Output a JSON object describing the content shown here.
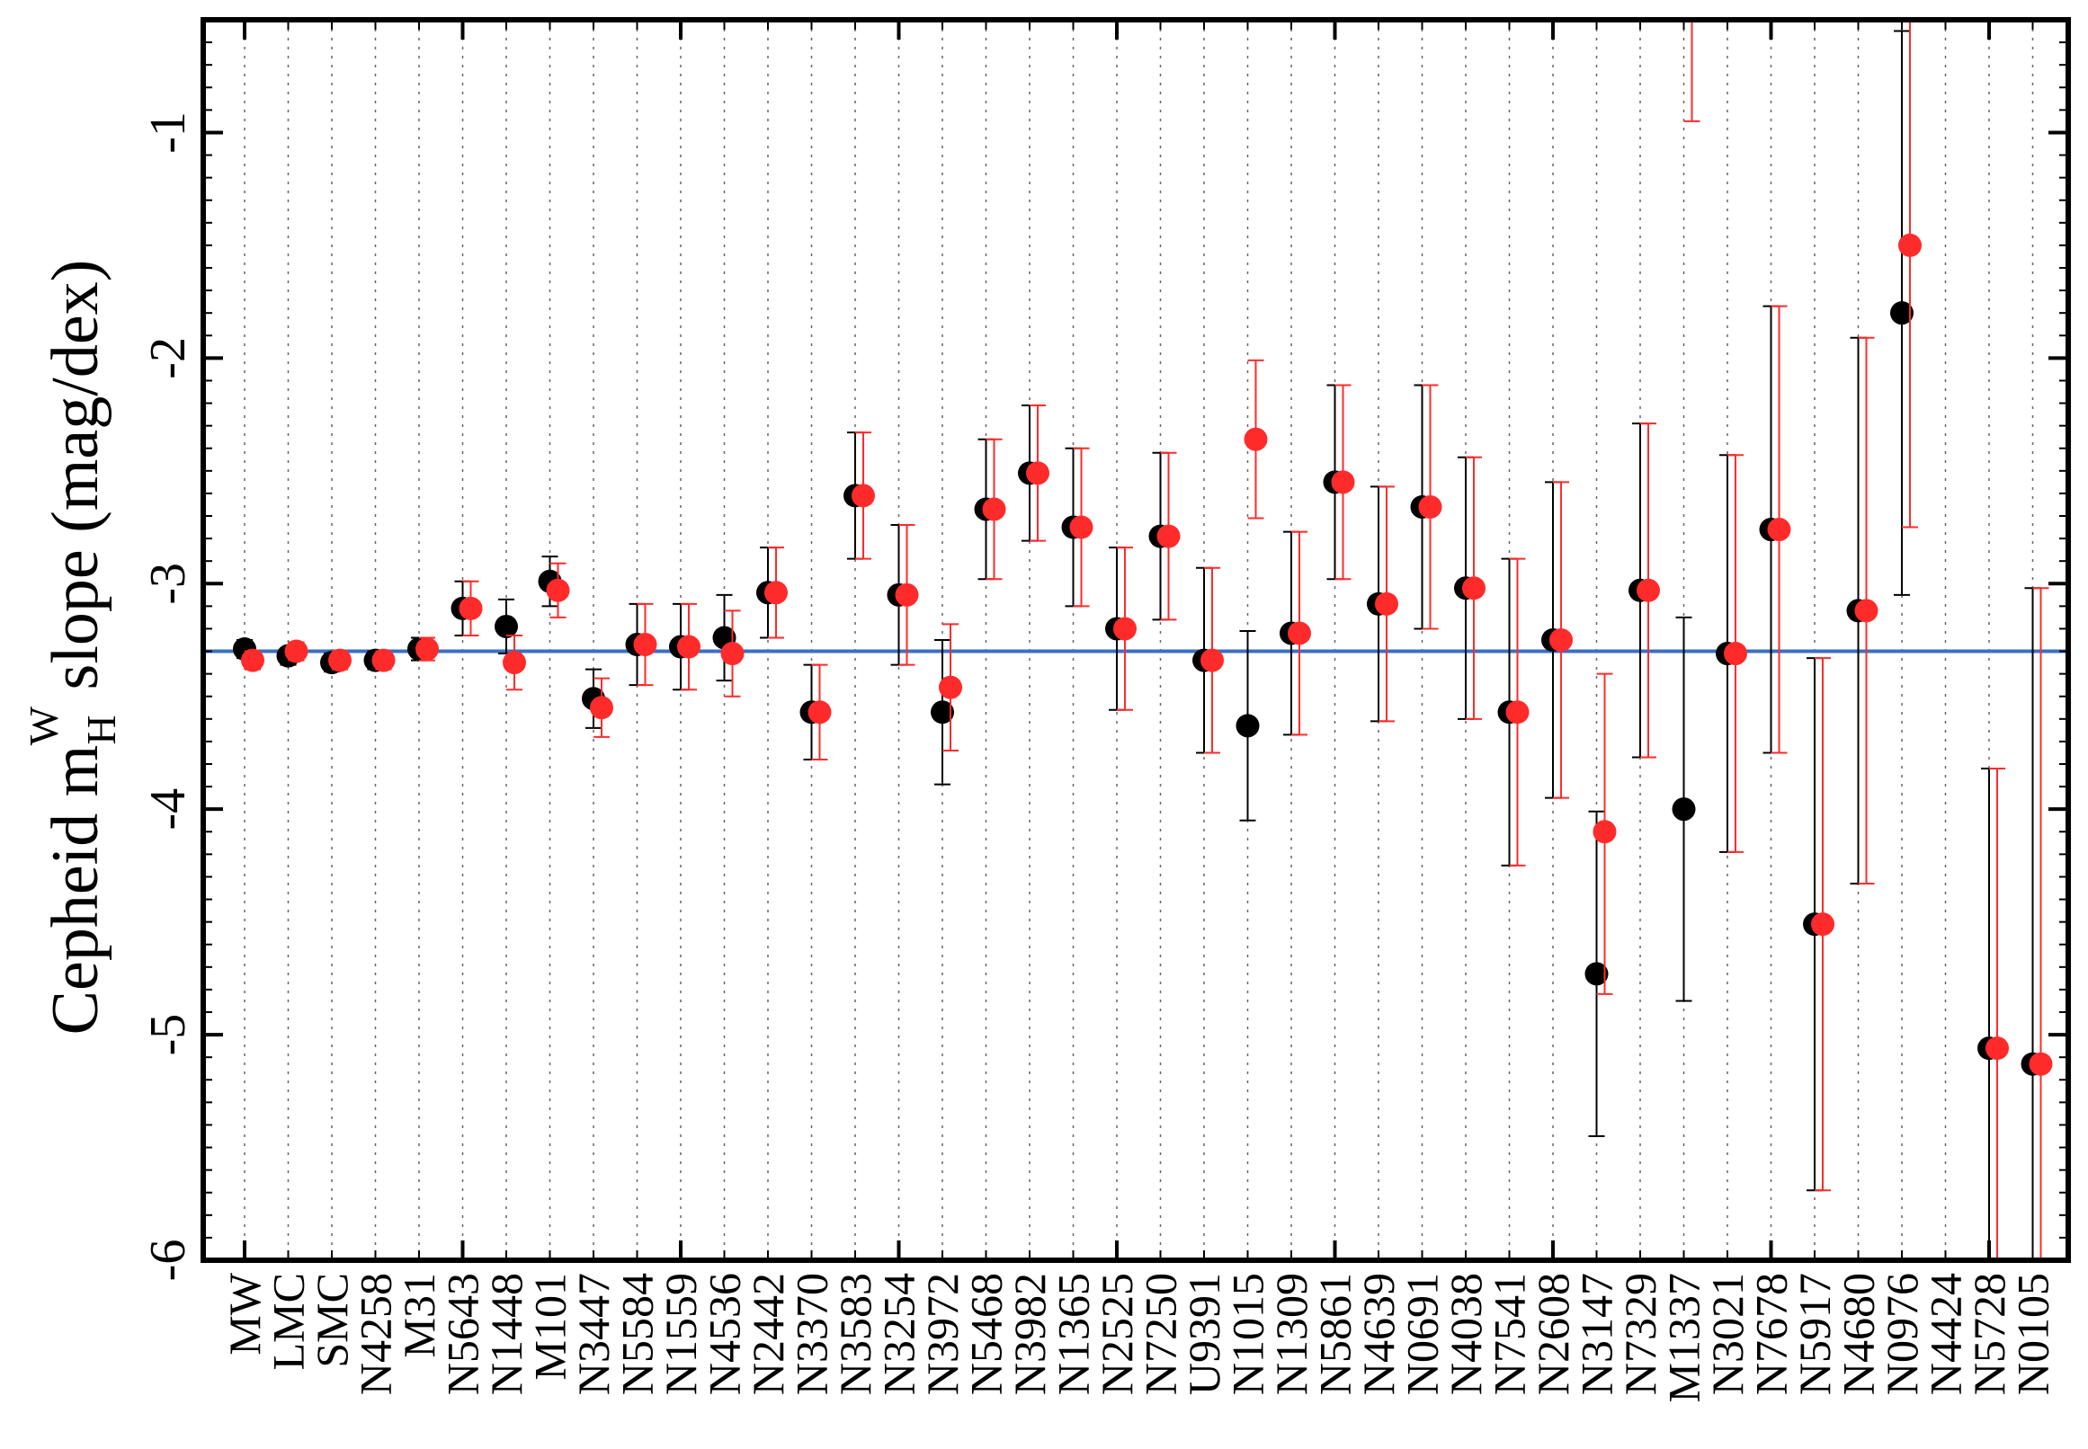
{
  "chart_data": {
    "type": "scatter",
    "title": "",
    "xlabel": "",
    "ylabel": "Cepheid m",
    "ylabel_sub": "H",
    "ylabel_sup": "W",
    "ylabel_rest": " slope (mag/dex)",
    "ylim": [
      -6.0,
      -0.5
    ],
    "yticks": [
      -6,
      -5,
      -4,
      -3,
      -2,
      -1
    ],
    "ytick_labels": [
      "-6",
      "-5",
      "-4",
      "-3",
      "-2",
      "-1"
    ],
    "grid": "vertical dotted",
    "reference_line": {
      "value": -3.3,
      "color": "#3a6fc4"
    },
    "categories": [
      "MW",
      "LMC",
      "SMC",
      "N4258",
      "M31",
      "N5643",
      "N1448",
      "M101",
      "N3447",
      "N5584",
      "N1559",
      "N4536",
      "N2442",
      "N3370",
      "N3583",
      "N3254",
      "N3972",
      "N5468",
      "N3982",
      "N1365",
      "N2525",
      "N7250",
      "U9391",
      "N1015",
      "N1309",
      "N5861",
      "N4639",
      "N0691",
      "N4038",
      "N7541",
      "N2608",
      "N3147",
      "N7329",
      "M1337",
      "N3021",
      "N7678",
      "N5917",
      "N4680",
      "N0976",
      "N4424",
      "N5728",
      "N0105"
    ],
    "series": [
      {
        "color": "#000000",
        "values": [
          -3.29,
          -3.32,
          -3.35,
          -3.34,
          -3.29,
          -3.11,
          -3.19,
          -2.99,
          -3.51,
          -3.27,
          -3.28,
          -3.24,
          -3.04,
          -3.57,
          -2.61,
          -3.05,
          -3.57,
          -2.67,
          -2.51,
          -2.75,
          -3.2,
          -2.79,
          -3.34,
          -3.63,
          -3.22,
          -2.55,
          -3.09,
          -2.66,
          -3.02,
          -3.57,
          -3.25,
          -4.73,
          -3.03,
          -4.0,
          -3.31,
          -2.76,
          -4.51,
          -3.12,
          -1.8,
          null,
          -5.06,
          -5.13
        ],
        "err_low": [
          -3.33,
          -3.36,
          -3.39,
          -3.38,
          -3.34,
          -3.23,
          -3.31,
          -3.1,
          -3.64,
          -3.45,
          -3.47,
          -3.43,
          -3.24,
          -3.78,
          -2.89,
          -3.36,
          -3.89,
          -2.98,
          -2.81,
          -3.1,
          -3.56,
          -3.16,
          -3.75,
          -4.05,
          -3.67,
          -2.98,
          -3.61,
          -3.2,
          -3.6,
          -4.25,
          -3.95,
          -5.45,
          -3.77,
          -4.85,
          -4.19,
          -3.75,
          -5.69,
          -4.33,
          -3.05,
          null,
          -6.3,
          -6.3
        ],
        "err_high": [
          -3.25,
          -3.29,
          -3.31,
          -3.3,
          -3.24,
          -2.99,
          -3.07,
          -2.88,
          -3.38,
          -3.09,
          -3.09,
          -3.05,
          -2.84,
          -3.36,
          -2.33,
          -2.74,
          -3.25,
          -2.36,
          -2.21,
          -2.4,
          -2.84,
          -2.42,
          -2.93,
          -3.21,
          -2.77,
          -2.12,
          -2.57,
          -2.12,
          -2.44,
          -2.89,
          -2.55,
          -4.01,
          -2.29,
          -3.15,
          -2.43,
          -1.77,
          -3.33,
          -1.91,
          -0.55,
          null,
          -3.82,
          -3.02
        ]
      },
      {
        "color": "#ff2b2b",
        "values": [
          -3.34,
          -3.3,
          -3.34,
          -3.34,
          -3.29,
          -3.11,
          -3.35,
          -3.03,
          -3.55,
          -3.27,
          -3.28,
          -3.31,
          -3.04,
          -3.57,
          -2.61,
          -3.05,
          -3.46,
          -2.67,
          -2.51,
          -2.75,
          -3.2,
          -2.79,
          -3.34,
          -2.36,
          -3.22,
          -2.55,
          -3.09,
          -2.66,
          -3.02,
          -3.57,
          -3.25,
          -4.1,
          -3.03,
          null,
          -3.31,
          -2.76,
          -4.51,
          -3.12,
          -1.5,
          null,
          -5.06,
          -5.13
        ],
        "err_low": [
          -3.38,
          -3.34,
          -3.38,
          -3.38,
          -3.34,
          -3.23,
          -3.47,
          -3.15,
          -3.68,
          -3.45,
          -3.47,
          -3.5,
          -3.24,
          -3.78,
          -2.89,
          -3.36,
          -3.74,
          -2.98,
          -2.81,
          -3.1,
          -3.56,
          -3.16,
          -3.75,
          -2.71,
          -3.67,
          -2.98,
          -3.61,
          -3.2,
          -3.6,
          -4.25,
          -3.95,
          -4.82,
          -3.77,
          null,
          -4.19,
          -3.75,
          -5.69,
          -4.33,
          -2.75,
          null,
          -6.3,
          -6.3
        ],
        "err_high": [
          -3.3,
          -3.26,
          -3.3,
          -3.3,
          -3.24,
          -2.99,
          -3.23,
          -2.91,
          -3.42,
          -3.09,
          -3.09,
          -3.12,
          -2.84,
          -3.36,
          -2.33,
          -2.74,
          -3.18,
          -2.36,
          -2.21,
          -2.4,
          -2.84,
          -2.42,
          -2.93,
          -2.01,
          -2.77,
          -2.12,
          -2.57,
          -2.12,
          -2.44,
          -2.89,
          -2.55,
          -3.4,
          -2.29,
          null,
          -2.43,
          -1.77,
          -3.33,
          -1.91,
          -0.45,
          null,
          -3.82,
          -3.02
        ]
      }
    ],
    "extra_red_errorbar": {
      "category": "M1337",
      "err_low": -0.95,
      "err_high": -0.45
    }
  }
}
